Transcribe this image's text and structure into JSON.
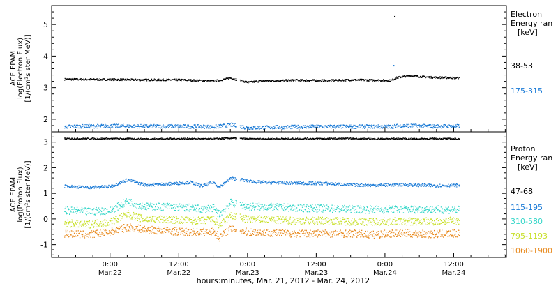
{
  "figure": {
    "xaxis_label": "hours:minutes, Mar. 21, 2012 - Mar. 24, 2012",
    "xticks": [
      {
        "hours": 24,
        "time": "0:00",
        "date": "Mar.22"
      },
      {
        "hours": 36,
        "time": "12:00",
        "date": "Mar.22"
      },
      {
        "hours": 48,
        "time": "0:00",
        "date": "Mar.23"
      },
      {
        "hours": 60,
        "time": "12:00",
        "date": "Mar.23"
      },
      {
        "hours": 72,
        "time": "0:00",
        "date": "Mar.24"
      },
      {
        "hours": 84,
        "time": "12:00",
        "date": "Mar.24"
      }
    ],
    "xlim_hours": [
      13.8,
      93.2
    ]
  },
  "chart_data": [
    {
      "type": "scatter",
      "panel": "electron",
      "ylabel_lines": [
        "ACE EPAM",
        "log(Electron Flux)",
        "[1/(cm²s ster MeV)]"
      ],
      "ylim": [
        1.6,
        5.6
      ],
      "yticks": [
        "2",
        "3",
        "4",
        "5"
      ],
      "legend_title": [
        "Electron",
        "Energy ran",
        "[keV]"
      ],
      "series": [
        {
          "name": "38-53",
          "color": "#000000",
          "x": [
            16,
            24,
            30,
            36,
            40,
            42,
            44,
            45,
            48,
            50,
            56,
            62,
            66,
            70,
            73,
            74,
            76,
            80,
            85
          ],
          "y": [
            3.28,
            3.27,
            3.26,
            3.26,
            3.24,
            3.22,
            3.28,
            3.32,
            3.18,
            3.22,
            3.25,
            3.24,
            3.26,
            3.25,
            3.24,
            3.33,
            3.39,
            3.34,
            3.32
          ]
        },
        {
          "name": "175-315",
          "color": "#1a7ad6",
          "x": [
            16,
            24,
            30,
            36,
            40,
            42,
            44,
            45,
            48,
            50,
            56,
            62,
            66,
            70,
            73,
            74,
            76,
            80,
            85
          ],
          "y": [
            1.78,
            1.8,
            1.79,
            1.79,
            1.78,
            1.77,
            1.81,
            1.84,
            1.74,
            1.75,
            1.77,
            1.78,
            1.78,
            1.78,
            1.78,
            1.8,
            1.81,
            1.79,
            1.79
          ]
        }
      ]
    },
    {
      "type": "scatter",
      "panel": "proton",
      "ylabel_lines": [
        "ACE EPAM",
        "log(Proton Flux)",
        "[1/(cm²s ster MeV)]"
      ],
      "ylim": [
        -1.5,
        3.4
      ],
      "yticks": [
        "-1",
        "0",
        "1",
        "2",
        "3"
      ],
      "legend_title": [
        "Proton",
        "Energy ran",
        "[keV]"
      ],
      "series": [
        {
          "name": "47-68",
          "color": "#000000",
          "x": [
            16,
            24,
            30,
            36,
            40,
            42,
            44,
            45,
            48,
            50,
            56,
            62,
            66,
            70,
            73,
            74,
            76,
            80,
            85
          ],
          "y": [
            3.15,
            3.15,
            3.14,
            3.15,
            3.14,
            3.14,
            3.16,
            3.17,
            3.14,
            3.14,
            3.15,
            3.15,
            3.15,
            3.14,
            3.15,
            3.15,
            3.14,
            3.15,
            3.14
          ]
        },
        {
          "name": "115-195",
          "color": "#1a7ad6",
          "x": [
            16,
            20,
            24,
            27,
            30,
            34,
            38,
            40,
            42,
            43,
            45,
            47,
            48,
            50,
            56,
            62,
            66,
            70,
            73,
            76,
            80,
            85
          ],
          "y": [
            1.3,
            1.25,
            1.28,
            1.55,
            1.35,
            1.38,
            1.45,
            1.3,
            1.45,
            1.25,
            1.6,
            1.55,
            1.5,
            1.45,
            1.42,
            1.4,
            1.35,
            1.33,
            1.35,
            1.35,
            1.32,
            1.33
          ]
        },
        {
          "name": "310-580",
          "color": "#33d6c8",
          "x": [
            16,
            20,
            24,
            27,
            30,
            34,
            38,
            40,
            42,
            43,
            45,
            47,
            48,
            50,
            56,
            62,
            66,
            70,
            73,
            76,
            80,
            85
          ],
          "y": [
            0.35,
            0.3,
            0.35,
            0.7,
            0.5,
            0.5,
            0.45,
            0.4,
            0.45,
            0.2,
            0.65,
            0.55,
            0.5,
            0.5,
            0.45,
            0.42,
            0.4,
            0.38,
            0.4,
            0.4,
            0.38,
            0.38
          ]
        },
        {
          "name": "795-1193",
          "color": "#c8e02a",
          "x": [
            16,
            20,
            24,
            27,
            30,
            34,
            38,
            40,
            42,
            43,
            45,
            47,
            48,
            50,
            56,
            62,
            66,
            70,
            73,
            76,
            80,
            85
          ],
          "y": [
            -0.15,
            -0.2,
            -0.1,
            0.2,
            0.0,
            0.0,
            -0.05,
            -0.05,
            0.0,
            -0.25,
            0.15,
            0.05,
            0.0,
            0.0,
            -0.05,
            -0.05,
            -0.08,
            -0.1,
            -0.08,
            -0.08,
            -0.08,
            -0.05
          ]
        },
        {
          "name": "1060-1900",
          "color": "#e8891c",
          "x": [
            16,
            20,
            24,
            27,
            30,
            34,
            38,
            40,
            42,
            43,
            45,
            47,
            48,
            50,
            56,
            62,
            66,
            70,
            73,
            76,
            80,
            85
          ],
          "y": [
            -0.55,
            -0.6,
            -0.5,
            -0.3,
            -0.4,
            -0.45,
            -0.5,
            -0.5,
            -0.45,
            -0.7,
            -0.35,
            -0.45,
            -0.5,
            -0.5,
            -0.55,
            -0.55,
            -0.55,
            -0.6,
            -0.55,
            -0.55,
            -0.58,
            -0.55
          ]
        }
      ]
    }
  ]
}
